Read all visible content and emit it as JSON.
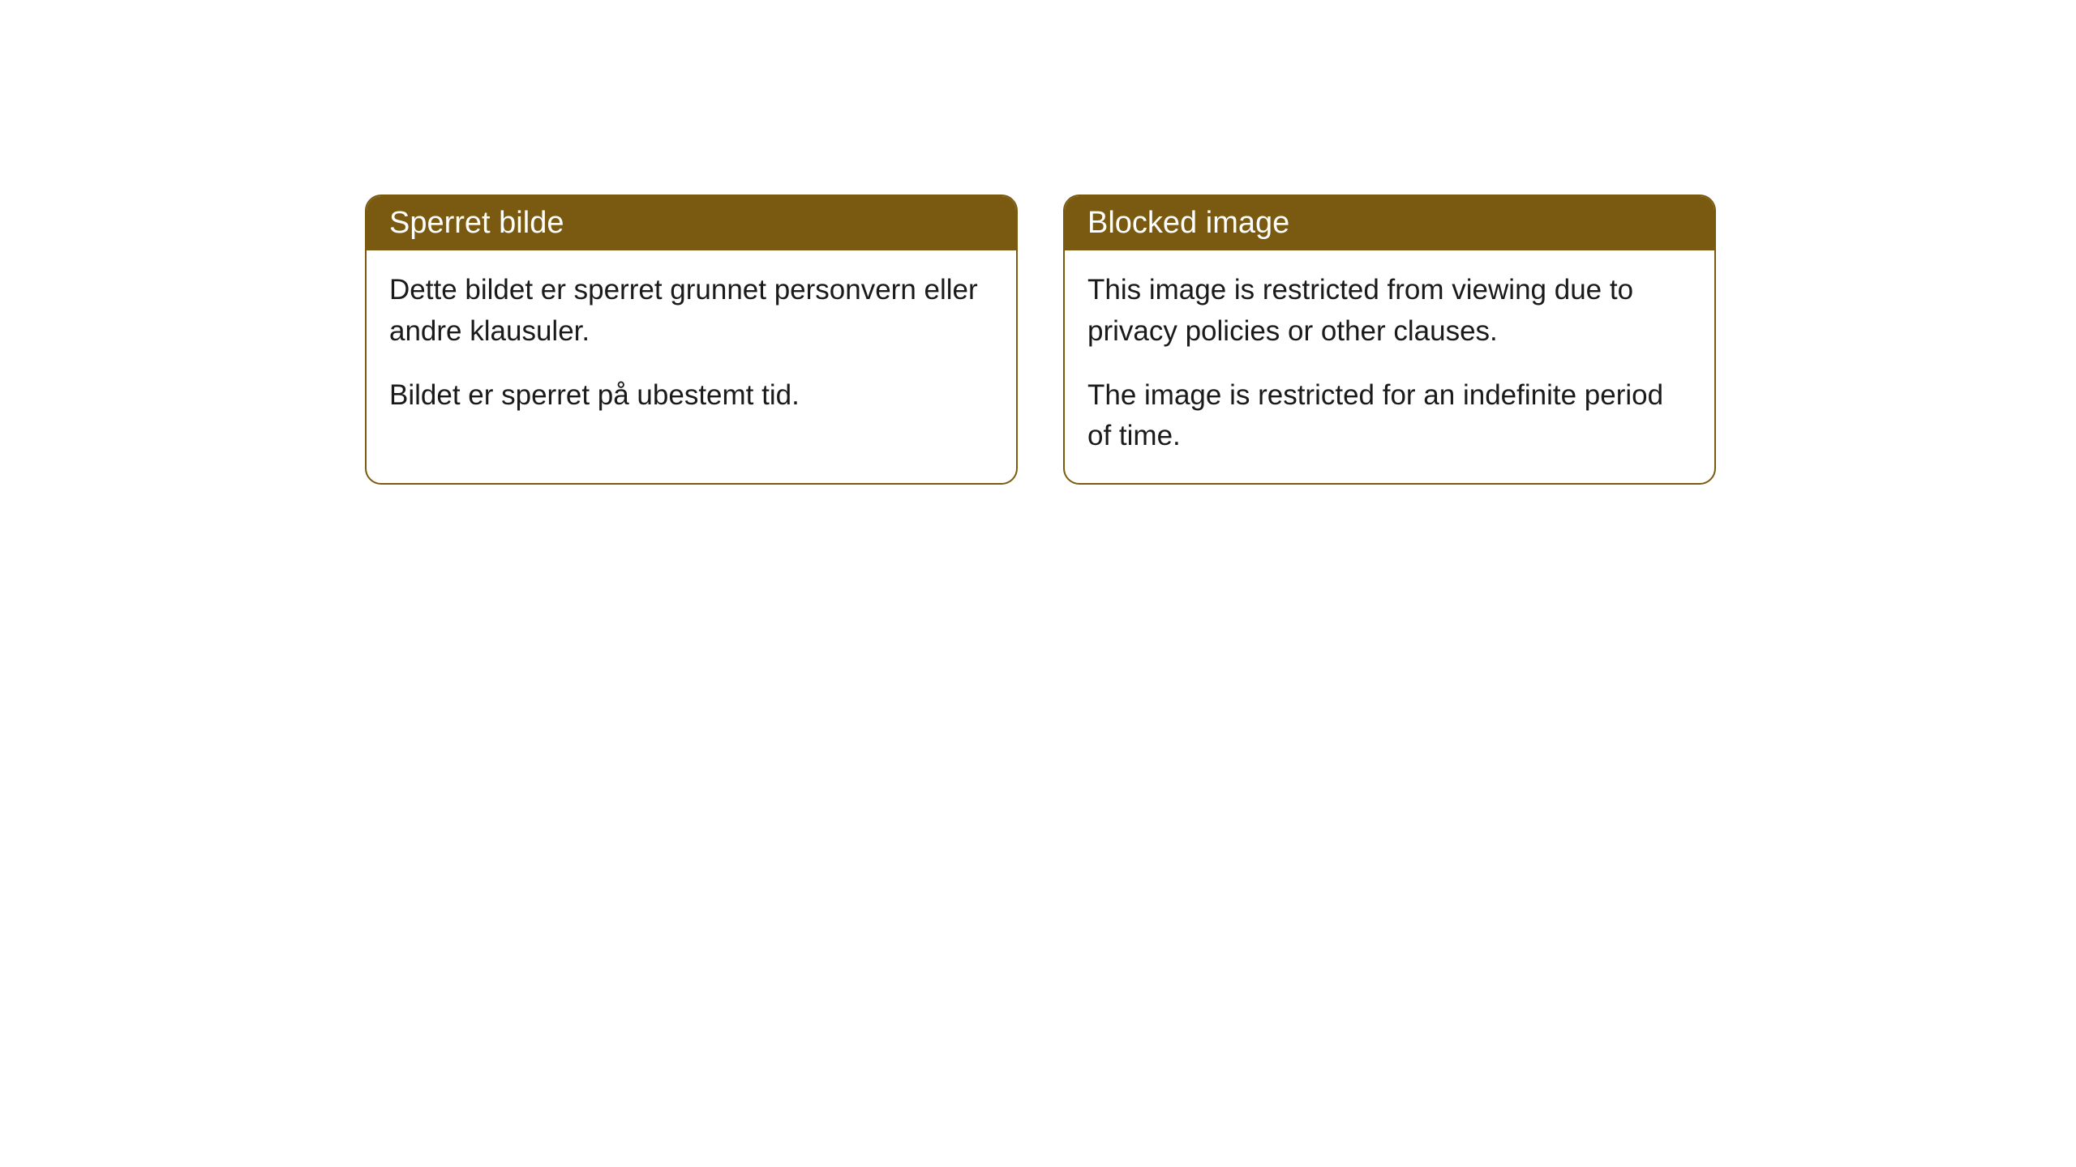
{
  "cards": [
    {
      "title": "Sperret bilde",
      "paragraph1": "Dette bildet er sperret grunnet personvern eller andre klausuler.",
      "paragraph2": "Bildet er sperret på ubestemt tid."
    },
    {
      "title": "Blocked image",
      "paragraph1": "This image is restricted from viewing due to privacy policies or other clauses.",
      "paragraph2": "The image is restricted for an indefinite period of time."
    }
  ],
  "styling": {
    "header_background": "#7a5a10",
    "header_text_color": "#ffffff",
    "border_color": "#7a5a10",
    "body_background": "#ffffff",
    "body_text_color": "#1a1a1a",
    "border_radius": 20,
    "header_fontsize": 38,
    "body_fontsize": 35
  }
}
